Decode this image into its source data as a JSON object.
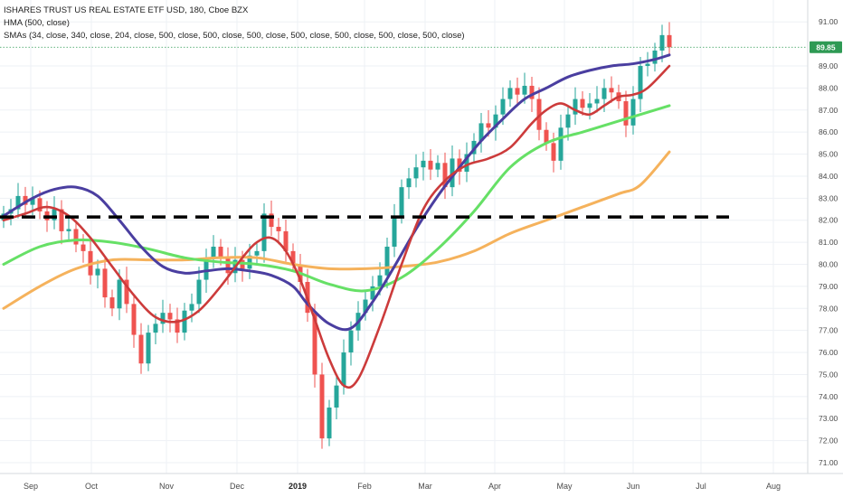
{
  "legend": {
    "title": "ISHARES TRUST US REAL ESTATE ETF USD, 180, Cboe BZX",
    "hma": "HMA (500, close)",
    "smas": "SMAs (34, close, 340, close, 204, close, 500, close, 500, close, 500, close, 500, close, 500, close, 500, close, 500, close)"
  },
  "price_tag": "89.85",
  "colors": {
    "up_candle": "#26a69a",
    "down_candle": "#ef5350",
    "hma": "#4a3ea0",
    "sma_short": "#cc3b3b",
    "sma_mid": "#66e066",
    "sma_long": "#f5b25c",
    "support": "#000000",
    "price_tag": "#2e9a54",
    "grid": "#eef1f5"
  },
  "chart_data": {
    "type": "line",
    "x_labels": [
      "Sep",
      "Oct",
      "Nov",
      "Dec",
      "2019",
      "Feb",
      "Mar",
      "Apr",
      "May",
      "Jun",
      "Jul",
      "Aug"
    ],
    "y_ticks": [
      "71.00",
      "72.00",
      "73.00",
      "74.00",
      "75.00",
      "76.00",
      "77.00",
      "78.00",
      "79.00",
      "80.00",
      "81.00",
      "82.00",
      "83.00",
      "84.00",
      "85.00",
      "86.00",
      "87.00",
      "88.00",
      "89.00",
      "91.00"
    ],
    "ylim": [
      70.5,
      91.4
    ],
    "last_price": 89.85,
    "support_level": 82.15,
    "candle_closes": [
      82.3,
      82.5,
      83.1,
      82.7,
      83.0,
      82.4,
      82.0,
      82.5,
      81.5,
      81.6,
      80.9,
      80.6,
      79.5,
      79.8,
      78.5,
      78.0,
      79.3,
      78.2,
      76.8,
      75.5,
      76.9,
      77.3,
      77.8,
      77.5,
      76.9,
      77.9,
      78.2,
      79.3,
      80.3,
      80.8,
      80.3,
      79.6,
      80.2,
      79.8,
      80.4,
      80.6,
      82.3,
      81.7,
      81.5,
      80.6,
      80.0,
      79.2,
      77.8,
      75.0,
      72.1,
      73.5,
      74.5,
      76.0,
      77.0,
      77.8,
      78.4,
      79.0,
      79.5,
      80.8,
      82.2,
      83.5,
      83.9,
      84.4,
      84.7,
      84.3,
      84.6,
      83.5,
      84.8,
      84.2,
      85.0,
      85.6,
      86.4,
      86.2,
      86.8,
      87.5,
      88.0,
      87.7,
      88.1,
      87.5,
      86.1,
      85.5,
      84.7,
      86.2,
      86.8,
      87.5,
      87.1,
      87.3,
      87.5,
      88.0,
      87.8,
      87.4,
      86.3,
      87.5,
      89.0,
      89.1,
      89.7,
      90.4,
      89.85
    ],
    "series": [
      {
        "key": "hma",
        "x": [
          0,
          4,
          7,
          10,
          13,
          16,
          19,
          22,
          25,
          28,
          31,
          34,
          37,
          40,
          42,
          45,
          48,
          51,
          54,
          57,
          60,
          63,
          66,
          69,
          72,
          75,
          78,
          81,
          84,
          87,
          90,
          92
        ],
        "y": [
          82.2,
          83.0,
          83.4,
          83.5,
          83.1,
          82.0,
          80.8,
          79.9,
          79.6,
          79.7,
          79.8,
          79.7,
          79.5,
          79.0,
          78.2,
          77.3,
          77.1,
          78.3,
          79.9,
          81.6,
          83.1,
          84.4,
          85.6,
          86.6,
          87.5,
          88.0,
          88.5,
          88.8,
          89.0,
          89.1,
          89.3,
          89.5
        ]
      },
      {
        "key": "sma_short",
        "x": [
          0,
          3,
          6,
          9,
          12,
          15,
          18,
          21,
          24,
          27,
          30,
          33,
          35,
          37,
          39,
          41,
          43,
          45,
          47,
          49,
          52,
          55,
          58,
          61,
          64,
          67,
          70,
          73,
          75,
          77,
          79,
          81,
          83,
          85,
          87,
          89,
          92
        ],
        "y": [
          82.0,
          82.3,
          82.6,
          82.2,
          81.2,
          79.9,
          78.6,
          77.6,
          77.4,
          77.9,
          79.0,
          80.3,
          81.0,
          81.2,
          80.6,
          79.3,
          77.5,
          75.7,
          74.5,
          74.8,
          77.2,
          80.0,
          82.5,
          83.8,
          84.5,
          84.8,
          85.3,
          86.4,
          87.0,
          87.3,
          87.0,
          86.8,
          87.2,
          87.6,
          87.7,
          88.0,
          89.0
        ]
      },
      {
        "key": "sma_mid",
        "x": [
          0,
          5,
          10,
          15,
          20,
          25,
          30,
          35,
          40,
          45,
          50,
          55,
          60,
          65,
          70,
          75,
          80,
          85,
          92
        ],
        "y": [
          80.0,
          80.8,
          81.1,
          81.0,
          80.7,
          80.3,
          80.1,
          80.0,
          79.7,
          79.1,
          78.8,
          79.4,
          80.7,
          82.4,
          84.4,
          85.5,
          86.0,
          86.5,
          87.2
        ]
      },
      {
        "key": "sma_long",
        "x": [
          0,
          5,
          10,
          15,
          20,
          25,
          30,
          35,
          40,
          45,
          50,
          55,
          60,
          65,
          70,
          75,
          80,
          85,
          88,
          92
        ],
        "y": [
          78.0,
          79.0,
          79.8,
          80.2,
          80.2,
          80.2,
          80.3,
          80.3,
          80.0,
          79.8,
          79.8,
          79.9,
          80.1,
          80.6,
          81.4,
          82.0,
          82.6,
          83.2,
          83.6,
          85.1
        ]
      }
    ]
  }
}
